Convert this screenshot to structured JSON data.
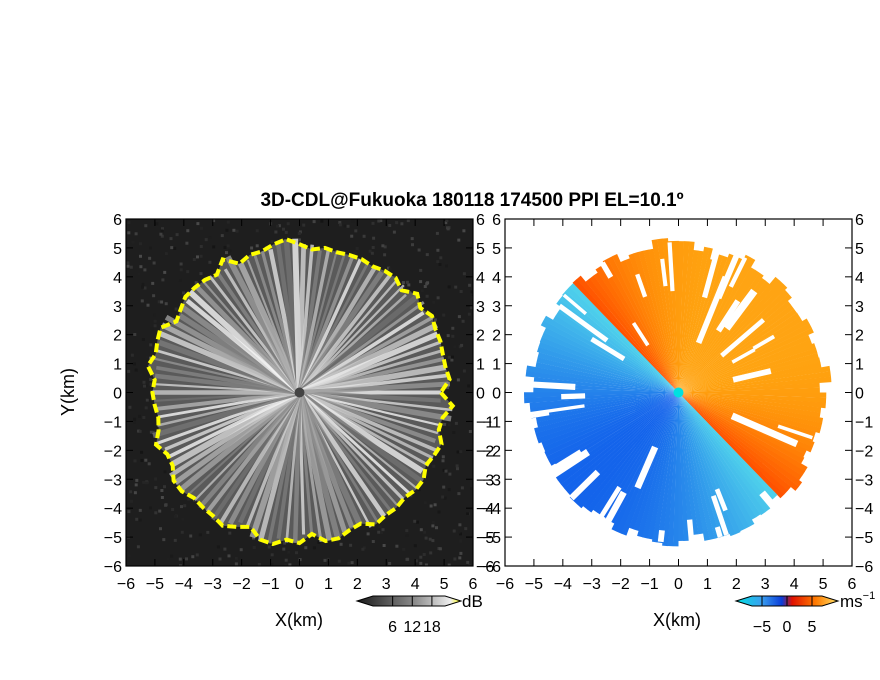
{
  "title": "3D-CDL@Fukuoka 180118 174500 PPI EL=10.1º",
  "chart_data": [
    {
      "type": "heatmap",
      "field": "SNR",
      "xlabel": "X(km)",
      "ylabel": "Y(km)",
      "xlim": [
        -6,
        6
      ],
      "ylim": [
        -6,
        6
      ],
      "x_ticks": [
        "−6",
        "−5",
        "−4",
        "−3",
        "−2",
        "−1",
        "0",
        "1",
        "2",
        "3",
        "4",
        "5",
        "6"
      ],
      "y_ticks": [
        "−6",
        "−5",
        "−4",
        "−3",
        "−2",
        "−1",
        "0",
        "1",
        "2",
        "3",
        "4",
        "5",
        "6"
      ],
      "scan_radius_km": 5.2,
      "colorbar": {
        "ticks": [
          "6",
          "12",
          "18"
        ],
        "unit": "dB",
        "range": [
          0,
          22
        ]
      },
      "colors": {
        "background": "#1e1e1e",
        "signal_low": "#5a5a5a",
        "signal_high": "#f2f2f2",
        "edge": "#ffff00"
      }
    },
    {
      "type": "heatmap",
      "field": "Doppler velocity",
      "xlabel": "X(km)",
      "ylabel": "",
      "xlim": [
        -6,
        6
      ],
      "ylim": [
        -6,
        6
      ],
      "x_ticks": [
        "−6",
        "−5",
        "−4",
        "−3",
        "−2",
        "−1",
        "0",
        "1",
        "2",
        "3",
        "4",
        "5",
        "6"
      ],
      "y_ticks": [
        "−6",
        "−5",
        "−4",
        "−3",
        "−2",
        "−1",
        "0",
        "1",
        "2",
        "3",
        "4",
        "5",
        "6"
      ],
      "scan_radius_km": 5.2,
      "colorbar": {
        "ticks": [
          "−5",
          "0",
          "5"
        ],
        "unit": "ms",
        "unit_sup": "−1",
        "range": [
          -7,
          7
        ]
      },
      "colors": {
        "negative_far": "#0a4fe0",
        "negative_near": "#52c8f0",
        "positive_near": "#ff2a00",
        "positive_far": "#ffbf1a",
        "center": "#00e0e0"
      }
    }
  ]
}
